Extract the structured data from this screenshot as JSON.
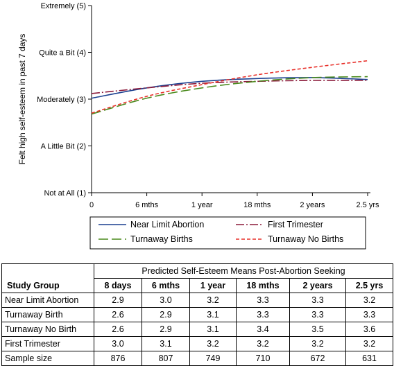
{
  "chart_data": {
    "type": "line",
    "ylabel": "Felt high self-esteem in past 7 days",
    "xlabel": "",
    "x_ticks": [
      "0",
      "6 mths",
      "1 year",
      "18 mths",
      "2 years",
      "2.5 yrs"
    ],
    "x_tick_values": [
      0,
      6,
      12,
      18,
      24,
      30
    ],
    "y_ticks": [
      "Not at All (1)",
      "A Little Bit (2)",
      "Moderately (3)",
      "Quite a Bit (4)",
      "Extremely (5)"
    ],
    "y_tick_values": [
      1,
      2,
      3,
      4,
      5
    ],
    "xlim": [
      0,
      30
    ],
    "ylim": [
      1,
      5
    ],
    "legend_position": "bottom",
    "x": [
      0,
      6,
      12,
      18,
      24,
      30
    ],
    "series": [
      {
        "name": "Near Limit Abortion",
        "color": "#1a3f8f",
        "dash": "solid",
        "values": [
          3.02,
          3.24,
          3.38,
          3.44,
          3.46,
          3.42
        ]
      },
      {
        "name": "First Trimester",
        "color": "#8b1a3a",
        "dash": "dashdot",
        "values": [
          3.12,
          3.24,
          3.34,
          3.38,
          3.4,
          3.4
        ]
      },
      {
        "name": "Turnaway Births",
        "color": "#4a8a1c",
        "dash": "longdash",
        "values": [
          2.68,
          3.02,
          3.24,
          3.38,
          3.46,
          3.48
        ]
      },
      {
        "name": "Turnaway No Births",
        "color": "#e8302a",
        "dash": "shortdash",
        "values": [
          2.7,
          3.06,
          3.31,
          3.52,
          3.68,
          3.82
        ]
      }
    ],
    "table": {
      "title": "Predicted Self-Esteem Means Post-Abortion Seeking",
      "group_header": "Study Group",
      "columns": [
        "8 days",
        "6 mths",
        "1 year",
        "18 mths",
        "2 years",
        "2.5 yrs"
      ],
      "rows": [
        {
          "label": "Near Limit Abortion",
          "cells": [
            "2.9",
            "3.0",
            "3.2",
            "3.3",
            "3.3",
            "3.2"
          ]
        },
        {
          "label": "Turnaway Birth",
          "cells": [
            "2.6",
            "2.9",
            "3.1",
            "3.3",
            "3.3",
            "3.3"
          ]
        },
        {
          "label": "Turnaway No Birth",
          "cells": [
            "2.6",
            "2.9",
            "3.1",
            "3.4",
            "3.5",
            "3.6"
          ]
        },
        {
          "label": "First Trimester",
          "cells": [
            "3.0",
            "3.1",
            "3.2",
            "3.2",
            "3.2",
            "3.2"
          ]
        },
        {
          "label": "Sample size",
          "cells": [
            "876",
            "807",
            "749",
            "710",
            "672",
            "631"
          ]
        }
      ]
    }
  }
}
